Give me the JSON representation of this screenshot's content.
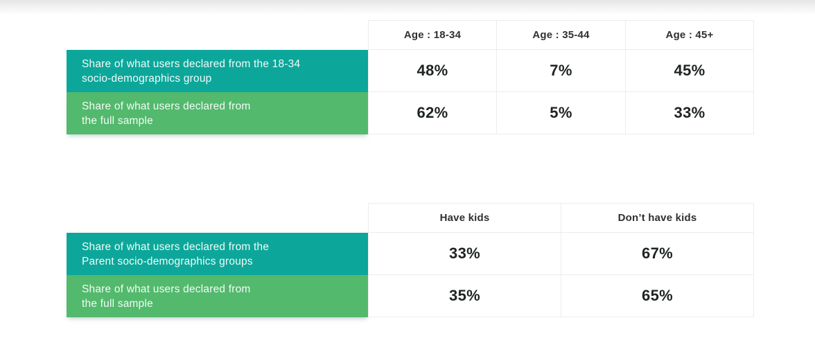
{
  "colors": {
    "teal": "#0ca79a",
    "green": "#53b96c",
    "border": "#ececec",
    "header_text": "#2e3131",
    "value_text": "#1f2323",
    "label_text": "#f1fbf9"
  },
  "chart_data": [
    {
      "type": "table",
      "title": "",
      "columns": [
        "Age : 18-34",
        "Age : 35-44",
        "Age : 45+"
      ],
      "rows": [
        {
          "label": "Share of what users declared from the 18-34 socio-demographics group",
          "label_line1": "Share of what users declared from the 18-34",
          "label_line2": "socio-demographics group",
          "row_color": "#0ca79a",
          "values": [
            "48%",
            "7%",
            "45%"
          ]
        },
        {
          "label": "Share of what users declared from the full sample",
          "label_line1": "Share of what users declared from",
          "label_line2": "the full sample",
          "row_color": "#53b96c",
          "values": [
            "62%",
            "5%",
            "33%"
          ]
        }
      ]
    },
    {
      "type": "table",
      "title": "",
      "columns": [
        "Have kids",
        "Don’t have kids"
      ],
      "rows": [
        {
          "label": "Share of what users declared from the Parent socio-demographics groups",
          "label_line1": "Share of what users declared from the",
          "label_line2": "Parent socio-demographics groups",
          "row_color": "#0ca79a",
          "values": [
            "33%",
            "67%"
          ]
        },
        {
          "label": "Share of what users declared from the full sample",
          "label_line1": "Share of what users declared from",
          "label_line2": "the full sample",
          "row_color": "#53b96c",
          "values": [
            "35%",
            "65%"
          ]
        }
      ]
    }
  ]
}
